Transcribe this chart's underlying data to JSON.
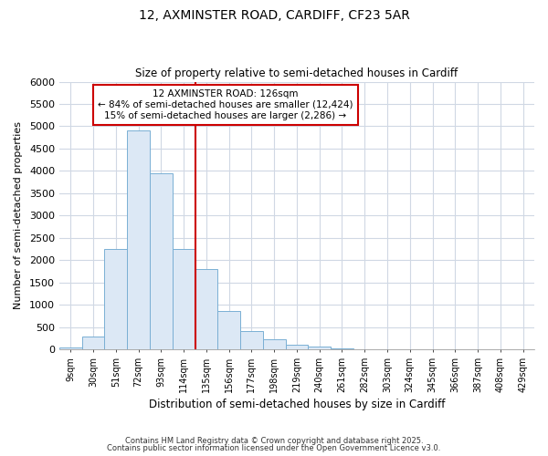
{
  "title1": "12, AXMINSTER ROAD, CARDIFF, CF23 5AR",
  "title2": "Size of property relative to semi-detached houses in Cardiff",
  "xlabel": "Distribution of semi-detached houses by size in Cardiff",
  "ylabel": "Number of semi-detached properties",
  "bar_labels": [
    "9sqm",
    "30sqm",
    "51sqm",
    "72sqm",
    "93sqm",
    "114sqm",
    "135sqm",
    "156sqm",
    "177sqm",
    "198sqm",
    "219sqm",
    "240sqm",
    "261sqm",
    "282sqm",
    "303sqm",
    "324sqm",
    "345sqm",
    "366sqm",
    "387sqm",
    "408sqm",
    "429sqm"
  ],
  "bar_values": [
    50,
    280,
    2250,
    4900,
    3950,
    2250,
    1800,
    850,
    400,
    220,
    100,
    60,
    25,
    5,
    5,
    3,
    2,
    1,
    1,
    1,
    0
  ],
  "bar_color": "#dce8f5",
  "bar_edgecolor": "#7aafd4",
  "bar_width": 1.0,
  "ylim": [
    0,
    6000
  ],
  "yticks": [
    0,
    500,
    1000,
    1500,
    2000,
    2500,
    3000,
    3500,
    4000,
    4500,
    5000,
    5500,
    6000
  ],
  "vline_x": 5.5,
  "vline_color": "#cc0000",
  "annotation_title": "12 AXMINSTER ROAD: 126sqm",
  "annotation_line1": "← 84% of semi-detached houses are smaller (12,424)",
  "annotation_line2": "15% of semi-detached houses are larger (2,286) →",
  "annotation_box_color": "#cc0000",
  "footer1": "Contains HM Land Registry data © Crown copyright and database right 2025.",
  "footer2": "Contains public sector information licensed under the Open Government Licence v3.0.",
  "bg_color": "#ffffff",
  "plot_bg_color": "#ffffff",
  "grid_color": "#d0d8e4"
}
